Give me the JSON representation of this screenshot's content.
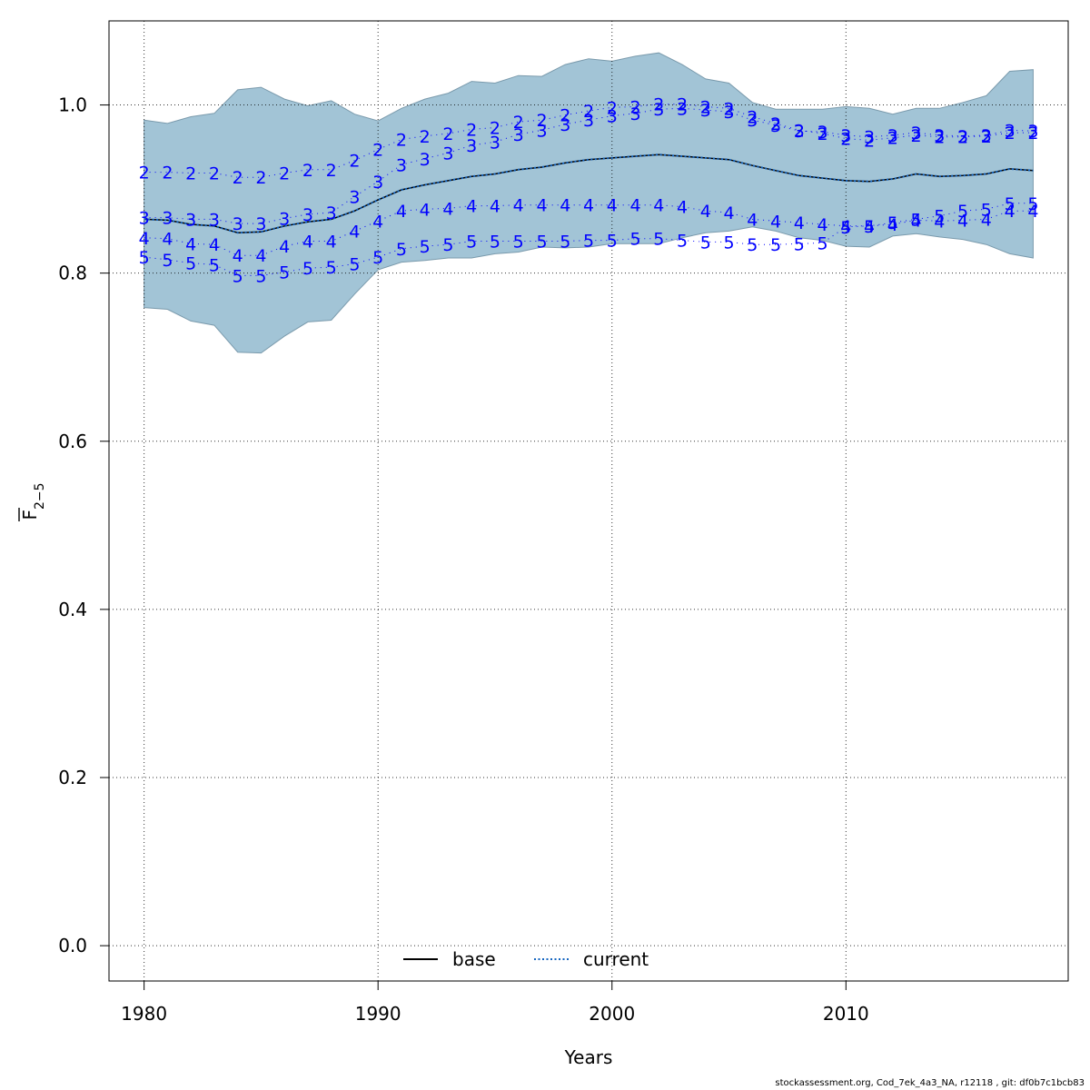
{
  "chart_data": {
    "type": "line",
    "xlabel": "Years",
    "ylabel_base": "F",
    "ylabel_sub": "2−5",
    "xlim": [
      1978.5,
      2019.5
    ],
    "ylim": [
      -0.042,
      1.1
    ],
    "xticks": [
      1980,
      1990,
      2000,
      2010
    ],
    "yticks": [
      0.0,
      0.2,
      0.4,
      0.6,
      0.8,
      1.0
    ],
    "ytick_labels": [
      "0.0",
      "0.2",
      "0.4",
      "0.6",
      "0.8",
      "1.0"
    ],
    "grid": true,
    "legend_position": "bottom",
    "legend": [
      {
        "label": "base",
        "style": "solid",
        "color": "#000000"
      },
      {
        "label": "current",
        "style": "dotted",
        "color": "#1565C0"
      }
    ],
    "years": [
      1980,
      1981,
      1982,
      1983,
      1984,
      1985,
      1986,
      1987,
      1988,
      1989,
      1990,
      1991,
      1992,
      1993,
      1994,
      1995,
      1996,
      1997,
      1998,
      1999,
      2000,
      2001,
      2002,
      2003,
      2004,
      2005,
      2006,
      2007,
      2008,
      2009,
      2010,
      2011,
      2012,
      2013,
      2014,
      2015,
      2016,
      2017,
      2018
    ],
    "band_upper": [
      0.982,
      0.978,
      0.986,
      0.99,
      1.018,
      1.021,
      1.007,
      0.999,
      1.005,
      0.989,
      0.981,
      0.996,
      1.007,
      1.014,
      1.028,
      1.026,
      1.035,
      1.034,
      1.048,
      1.055,
      1.052,
      1.058,
      1.062,
      1.048,
      1.031,
      1.026,
      1.003,
      0.995,
      0.995,
      0.995,
      0.998,
      0.996,
      0.989,
      0.996,
      0.996,
      1.003,
      1.011,
      1.04,
      1.042
    ],
    "band_lower": [
      0.759,
      0.757,
      0.743,
      0.738,
      0.706,
      0.705,
      0.725,
      0.742,
      0.744,
      0.775,
      0.804,
      0.813,
      0.815,
      0.818,
      0.818,
      0.823,
      0.825,
      0.831,
      0.83,
      0.831,
      0.835,
      0.835,
      0.835,
      0.842,
      0.848,
      0.85,
      0.855,
      0.85,
      0.842,
      0.839,
      0.832,
      0.831,
      0.844,
      0.847,
      0.843,
      0.84,
      0.834,
      0.823,
      0.818
    ],
    "series": [
      {
        "name": "base",
        "values": [
          0.864,
          0.863,
          0.858,
          0.856,
          0.848,
          0.849,
          0.856,
          0.861,
          0.864,
          0.874,
          0.887,
          0.899,
          0.905,
          0.91,
          0.915,
          0.918,
          0.923,
          0.926,
          0.931,
          0.935,
          0.937,
          0.939,
          0.941,
          0.939,
          0.937,
          0.935,
          0.928,
          0.922,
          0.916,
          0.913,
          0.91,
          0.909,
          0.912,
          0.918,
          0.915,
          0.916,
          0.918,
          0.924,
          0.922
        ]
      },
      {
        "name": "current",
        "values": [
          0.864,
          0.863,
          0.858,
          0.856,
          0.848,
          0.849,
          0.856,
          0.861,
          0.864,
          0.874,
          0.887,
          0.899,
          0.905,
          0.91,
          0.915,
          0.918,
          0.923,
          0.926,
          0.931,
          0.935,
          0.937,
          0.939,
          0.941,
          0.939,
          0.937,
          0.935,
          0.928,
          0.922,
          0.916,
          0.913,
          0.91,
          0.909,
          0.912,
          0.918,
          0.915,
          0.916,
          0.918,
          0.924,
          0.922
        ]
      }
    ],
    "peels": [
      {
        "label": "2",
        "values": [
          0.92,
          0.92,
          0.919,
          0.919,
          0.914,
          0.914,
          0.919,
          0.923,
          0.923,
          0.934,
          0.947,
          0.959,
          0.963,
          0.966,
          0.971,
          0.973,
          0.98,
          0.982,
          0.988,
          0.993,
          0.997,
          0.998,
          1.001,
          1.001,
          0.998,
          0.996,
          0.986,
          0.978,
          0.97,
          0.966,
          0.96,
          0.958,
          0.961,
          0.964,
          0.962,
          0.962,
          0.963,
          0.967,
          0.967
        ]
      },
      {
        "label": "3",
        "values": [
          0.866,
          0.866,
          0.864,
          0.864,
          0.859,
          0.859,
          0.865,
          0.87,
          0.872,
          0.891,
          0.909,
          0.929,
          0.936,
          0.943,
          0.952,
          0.956,
          0.965,
          0.97,
          0.977,
          0.982,
          0.987,
          0.99,
          0.995,
          0.996,
          0.994,
          0.992,
          0.982,
          0.976,
          0.969,
          0.968,
          0.964,
          0.962,
          0.964,
          0.967,
          0.964,
          0.963,
          0.964,
          0.97,
          0.969
        ]
      },
      {
        "label": "4",
        "values": [
          0.842,
          0.841,
          0.835,
          0.834,
          0.821,
          0.821,
          0.832,
          0.838,
          0.838,
          0.85,
          0.862,
          0.874,
          0.876,
          0.877,
          0.88,
          0.88,
          0.881,
          0.881,
          0.881,
          0.881,
          0.881,
          0.881,
          0.881,
          0.879,
          0.874,
          0.872,
          0.864,
          0.862,
          0.86,
          0.858,
          0.856,
          0.856,
          0.858,
          0.863,
          0.862,
          0.863,
          0.864,
          0.874,
          0.874
        ]
      },
      {
        "label": "5",
        "values": [
          0.819,
          0.816,
          0.812,
          0.81,
          0.797,
          0.797,
          0.801,
          0.806,
          0.807,
          0.811,
          0.819,
          0.829,
          0.832,
          0.834,
          0.838,
          0.838,
          0.838,
          0.838,
          0.838,
          0.839,
          0.839,
          0.841,
          0.841,
          0.839,
          0.837,
          0.837,
          0.834,
          0.834,
          0.835,
          0.836,
          0.855,
          0.856,
          0.86,
          0.864,
          0.868,
          0.874,
          0.876,
          0.883,
          0.883
        ]
      }
    ],
    "colors": {
      "band": "#A2C4D6",
      "band_edge": "#7A9AAC",
      "base_line": "#000000",
      "current_line": "#1565C0",
      "peel": "#0000FF",
      "grid": "#000000"
    }
  },
  "footer": {
    "text": "stockassessment.org, Cod_7ek_4a3_NA, r12118 , git: df0b7c1bcb83"
  }
}
